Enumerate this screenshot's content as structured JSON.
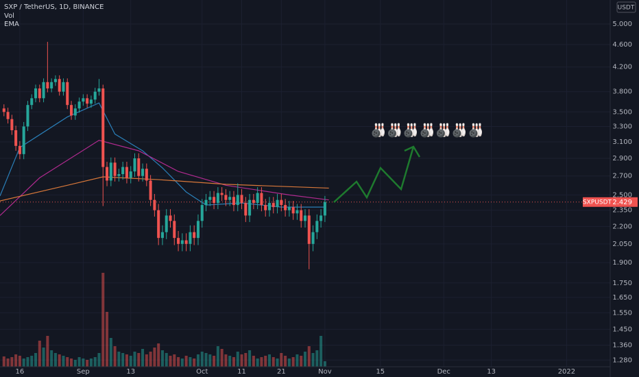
{
  "chart_data": {
    "type": "candlestick",
    "title": "SXP / TetherUS, 1D, BINANCE",
    "indicators": [
      "Vol",
      "EMA"
    ],
    "currency": "USDT",
    "symbol": "SXPUSDT",
    "annotation": "🎳🎳🎳🎳🎳🎳🎳",
    "up_color": "#26a69a",
    "down_color": "#ef5350",
    "background": "#131722",
    "grid": true,
    "ylog": true,
    "open": [
      3.55,
      3.5,
      3.4,
      3.25,
      3.05,
      2.95,
      3.3,
      3.6,
      3.7,
      3.85,
      3.7,
      3.95,
      3.85,
      3.95,
      4.0,
      3.8,
      3.95,
      3.6,
      3.45,
      3.55,
      3.65,
      3.7,
      3.62,
      3.68,
      3.8,
      3.85,
      2.8,
      2.65,
      2.85,
      2.7,
      2.72,
      2.8,
      2.68,
      2.75,
      2.9,
      2.7,
      2.78,
      2.65,
      2.45,
      2.35,
      2.1,
      2.15,
      2.3,
      2.25,
      2.1,
      2.05,
      2.08,
      2.05,
      2.15,
      2.1,
      2.25,
      2.4,
      2.45,
      2.48,
      2.42,
      2.52,
      2.5,
      2.45,
      2.48,
      2.4,
      2.5,
      2.42,
      2.3,
      2.45,
      2.42,
      2.52,
      2.4,
      2.35,
      2.42,
      2.38,
      2.45,
      2.4,
      2.35,
      2.38,
      2.32,
      2.35,
      2.25,
      2.3,
      2.05,
      2.15,
      2.25,
      2.3
    ],
    "high": [
      3.61,
      3.56,
      3.46,
      3.31,
      3.11,
      3.36,
      3.66,
      3.76,
      3.91,
      3.91,
      4.01,
      4.65,
      4.01,
      4.06,
      4.06,
      4.01,
      4.01,
      3.66,
      3.61,
      3.71,
      3.76,
      3.76,
      3.74,
      3.86,
      4.0,
      3.91,
      2.86,
      2.91,
      2.91,
      2.78,
      2.86,
      2.86,
      2.81,
      2.96,
      2.96,
      2.84,
      2.84,
      2.71,
      2.51,
      2.41,
      2.21,
      2.36,
      2.36,
      2.31,
      2.16,
      2.14,
      2.14,
      2.21,
      2.21,
      2.31,
      2.46,
      2.51,
      2.54,
      2.54,
      2.58,
      2.58,
      2.56,
      2.54,
      2.54,
      2.62,
      2.56,
      2.48,
      2.51,
      2.51,
      2.58,
      2.58,
      2.46,
      2.48,
      2.48,
      2.51,
      2.51,
      2.46,
      2.44,
      2.44,
      2.41,
      2.41,
      2.36,
      2.36,
      2.21,
      2.31,
      2.36,
      2.49
    ],
    "low": [
      3.44,
      3.34,
      3.19,
      2.99,
      2.89,
      2.89,
      3.24,
      3.54,
      3.64,
      3.64,
      3.64,
      3.79,
      3.79,
      3.89,
      3.74,
      3.74,
      3.54,
      3.39,
      3.39,
      3.49,
      3.59,
      3.56,
      3.56,
      3.62,
      3.74,
      2.39,
      2.59,
      2.59,
      2.64,
      2.64,
      2.66,
      2.62,
      2.62,
      2.69,
      2.64,
      2.64,
      2.59,
      2.39,
      2.29,
      2.04,
      2.04,
      2.09,
      2.19,
      2.04,
      1.99,
      1.99,
      1.99,
      1.99,
      2.04,
      2.04,
      2.19,
      2.34,
      2.39,
      2.36,
      2.36,
      2.44,
      2.39,
      2.39,
      2.34,
      2.34,
      2.36,
      2.24,
      2.24,
      2.36,
      2.36,
      2.34,
      2.29,
      2.29,
      2.32,
      2.32,
      2.34,
      2.29,
      2.29,
      2.26,
      2.26,
      2.19,
      2.19,
      1.85,
      1.99,
      2.09,
      2.19,
      2.24
    ],
    "close": [
      3.5,
      3.4,
      3.25,
      3.05,
      2.95,
      3.3,
      3.6,
      3.7,
      3.85,
      3.7,
      3.95,
      3.85,
      3.95,
      4.0,
      3.8,
      3.95,
      3.6,
      3.45,
      3.55,
      3.65,
      3.7,
      3.62,
      3.68,
      3.8,
      3.85,
      2.8,
      2.65,
      2.85,
      2.7,
      2.72,
      2.8,
      2.68,
      2.75,
      2.9,
      2.7,
      2.78,
      2.65,
      2.45,
      2.35,
      2.1,
      2.15,
      2.3,
      2.25,
      2.1,
      2.05,
      2.08,
      2.05,
      2.15,
      2.1,
      2.25,
      2.4,
      2.45,
      2.48,
      2.42,
      2.52,
      2.5,
      2.45,
      2.48,
      2.4,
      2.5,
      2.42,
      2.3,
      2.45,
      2.42,
      2.52,
      2.4,
      2.35,
      2.42,
      2.38,
      2.45,
      2.4,
      2.35,
      2.38,
      2.32,
      2.35,
      2.25,
      2.3,
      2.05,
      2.15,
      2.25,
      2.3,
      2.429
    ],
    "volume": [
      15,
      12,
      14,
      18,
      16,
      12,
      14,
      16,
      20,
      38,
      28,
      45,
      24,
      20,
      18,
      16,
      14,
      12,
      10,
      14,
      12,
      10,
      12,
      14,
      20,
      137,
      80,
      42,
      30,
      22,
      20,
      18,
      16,
      22,
      20,
      26,
      18,
      22,
      28,
      34,
      24,
      20,
      16,
      18,
      14,
      12,
      16,
      14,
      12,
      18,
      22,
      20,
      18,
      16,
      30,
      26,
      18,
      16,
      14,
      22,
      18,
      20,
      24,
      16,
      12,
      14,
      16,
      18,
      14,
      12,
      20,
      16,
      12,
      14,
      18,
      16,
      22,
      30,
      20,
      24,
      45,
      8
    ],
    "emas": [
      {
        "color": "#2a7fb8",
        "x": [
          -1,
          4,
          16,
          24,
          28,
          35,
          40,
          46,
          51,
          60,
          70,
          81
        ],
        "values": [
          2.49,
          3.03,
          3.43,
          3.63,
          3.2,
          2.99,
          2.79,
          2.53,
          2.4,
          2.42,
          2.38,
          2.38
        ]
      },
      {
        "color": "#b02a8f",
        "x": [
          -1,
          9,
          24,
          34,
          44,
          56,
          72,
          82
        ],
        "values": [
          2.3,
          2.68,
          3.12,
          2.99,
          2.75,
          2.6,
          2.5,
          2.45
        ]
      },
      {
        "color": "#d9783a",
        "x": [
          -1,
          16,
          25,
          39,
          56,
          82
        ],
        "values": [
          2.44,
          2.6,
          2.69,
          2.66,
          2.61,
          2.57
        ]
      }
    ],
    "xlim": [
      -1,
      153
    ],
    "xticks": [
      {
        "value": 4,
        "label": "16"
      },
      {
        "value": 20,
        "label": "Sep"
      },
      {
        "value": 32,
        "label": "13"
      },
      {
        "value": 50,
        "label": "Oct"
      },
      {
        "value": 60,
        "label": "11"
      },
      {
        "value": 70,
        "label": "21"
      },
      {
        "value": 81,
        "label": "Nov"
      },
      {
        "value": 95,
        "label": "15"
      },
      {
        "value": 111,
        "label": "Dec"
      },
      {
        "value": 123,
        "label": "13"
      },
      {
        "value": 142,
        "label": "2022"
      }
    ],
    "ylim": [
      1.246,
      5.51
    ],
    "yticks": [
      {
        "value": 5,
        "label": "5.000"
      },
      {
        "value": 4.6,
        "label": "4.600"
      },
      {
        "value": 4.2,
        "label": "4.200"
      },
      {
        "value": 3.8,
        "label": "3.800"
      },
      {
        "value": 3.5,
        "label": "3.500"
      },
      {
        "value": 3.3,
        "label": "3.300"
      },
      {
        "value": 3.1,
        "label": "3.100"
      },
      {
        "value": 2.9,
        "label": "2.900"
      },
      {
        "value": 2.7,
        "label": "2.700"
      },
      {
        "value": 2.5,
        "label": "2.500"
      },
      {
        "value": 2.35,
        "label": "2.350"
      },
      {
        "value": 2.2,
        "label": "2.200"
      },
      {
        "value": 2.05,
        "label": "2.050"
      },
      {
        "value": 1.9,
        "label": "1.900"
      },
      {
        "value": 1.75,
        "label": "1.750"
      },
      {
        "value": 1.65,
        "label": "1.650"
      },
      {
        "value": 1.55,
        "label": "1.550"
      },
      {
        "value": 1.45,
        "label": "1.450"
      },
      {
        "value": 1.36,
        "label": "1.360"
      },
      {
        "value": 1.28,
        "label": "1.280"
      }
    ],
    "y2lim": [
      0,
      535
    ]
  }
}
